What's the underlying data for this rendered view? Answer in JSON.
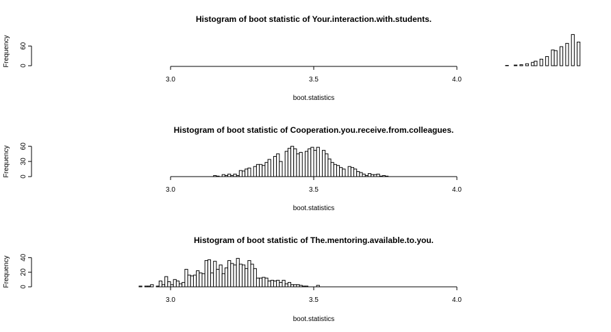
{
  "chart_data": [
    {
      "type": "bar",
      "title": "Histogram of boot statistic of  Your.interaction.with.students.",
      "xlabel": "boot.statistics",
      "ylabel": "Frequency",
      "xlim": [
        3.0,
        4.0
      ],
      "x_ticks": [
        "3.0",
        "3.5",
        "4.0"
      ],
      "y_ticks": [
        "0",
        "60"
      ],
      "ylim": [
        0,
        100
      ],
      "bin_width": 0.01,
      "bin_start": 4.17,
      "values": [
        1,
        0,
        0,
        2,
        0,
        3,
        0,
        6,
        0,
        10,
        14,
        0,
        20,
        0,
        28,
        0,
        48,
        46,
        0,
        58,
        0,
        68,
        0,
        95,
        0,
        72
      ]
    },
    {
      "type": "bar",
      "title": "Histogram of boot statistic of  Cooperation.you.receive.from.colleagues.",
      "xlabel": "boot.statistics",
      "ylabel": "Frequency",
      "xlim": [
        3.0,
        4.0
      ],
      "x_ticks": [
        "3.0",
        "3.5",
        "4.0"
      ],
      "y_ticks": [
        "0",
        "30",
        "60"
      ],
      "ylim": [
        0,
        65
      ],
      "bin_width": 0.01,
      "bin_start": 3.15,
      "values": [
        2,
        1,
        0,
        4,
        2,
        5,
        2,
        5,
        2,
        12,
        11,
        15,
        17,
        0,
        20,
        24,
        24,
        22,
        28,
        34,
        0,
        40,
        45,
        30,
        0,
        50,
        56,
        60,
        55,
        45,
        48,
        0,
        50,
        55,
        58,
        52,
        58,
        0,
        52,
        45,
        35,
        28,
        24,
        22,
        18,
        15,
        0,
        20,
        18,
        15,
        10,
        8,
        5,
        2,
        6,
        4,
        4,
        5,
        1,
        2,
        1
      ]
    },
    {
      "type": "bar",
      "title": "Histogram of boot statistic of  The.mentoring.available.to.you.",
      "xlabel": "boot.statistics",
      "ylabel": "Frequency",
      "xlim": [
        3.0,
        4.0
      ],
      "x_ticks": [
        "3.0",
        "3.5",
        "4.0"
      ],
      "y_ticks": [
        "0",
        "20",
        "40"
      ],
      "ylim": [
        0,
        45
      ],
      "bin_width": 0.01,
      "bin_start": 2.89,
      "values": [
        1,
        0,
        1,
        1,
        3,
        0,
        1,
        8,
        3,
        14,
        7,
        3,
        10,
        8,
        4,
        6,
        24,
        16,
        15,
        16,
        22,
        19,
        18,
        36,
        37,
        19,
        35,
        24,
        30,
        18,
        26,
        36,
        32,
        30,
        39,
        31,
        30,
        25,
        36,
        31,
        25,
        12,
        12,
        13,
        12,
        8,
        9,
        8,
        9,
        6,
        9,
        4,
        6,
        3,
        3,
        3,
        2,
        1,
        1,
        0,
        0,
        0,
        2
      ]
    }
  ]
}
